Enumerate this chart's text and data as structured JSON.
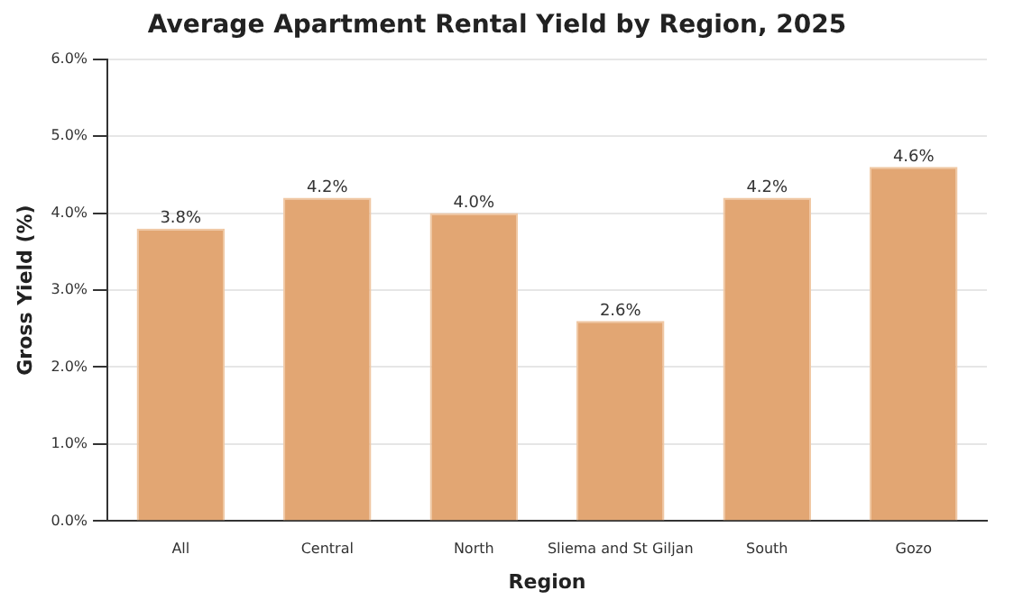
{
  "chart_data": {
    "type": "bar",
    "title": "Average Apartment Rental Yield by Region, 2025",
    "xlabel": "Region",
    "ylabel": "Gross Yield (%)",
    "categories": [
      "All",
      "Central",
      "North",
      "Sliema and St Giljan",
      "South",
      "Gozo"
    ],
    "values": [
      3.8,
      4.2,
      4.0,
      2.6,
      4.2,
      4.6
    ],
    "value_labels": [
      "3.8%",
      "4.2%",
      "4.0%",
      "2.6%",
      "4.2%",
      "4.6%"
    ],
    "color": "#e2a673",
    "ylim": [
      0,
      6
    ],
    "yticks": [
      {
        "value": 0,
        "label": "0.0%"
      },
      {
        "value": 1,
        "label": "1.0%"
      },
      {
        "value": 2,
        "label": "2.0%"
      },
      {
        "value": 3,
        "label": "3.0%"
      },
      {
        "value": 4,
        "label": "4.0%"
      },
      {
        "value": 5,
        "label": "5.0%"
      },
      {
        "value": 6,
        "label": "6.0%"
      }
    ],
    "grid": "y",
    "legend": false
  }
}
